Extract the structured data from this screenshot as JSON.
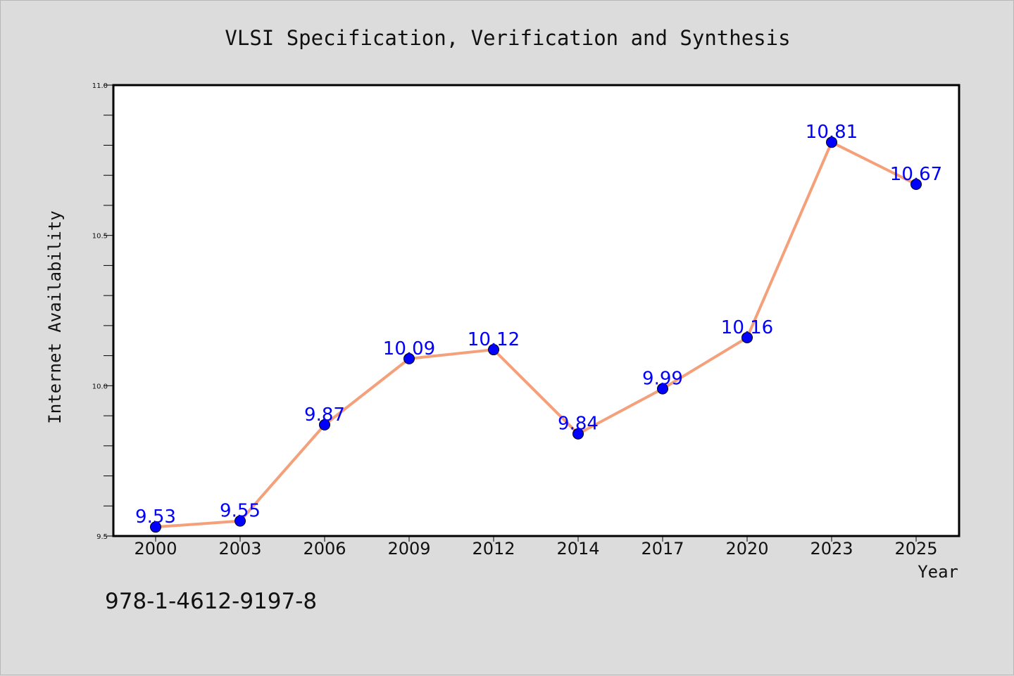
{
  "chart_data": {
    "type": "line",
    "title": "VLSI Specification, Verification and Synthesis",
    "xlabel": "Year",
    "ylabel": "Internet Availability",
    "categories": [
      "2000",
      "2003",
      "2006",
      "2009",
      "2012",
      "2014",
      "2017",
      "2020",
      "2023",
      "2025"
    ],
    "series": [
      {
        "values": [
          9.53,
          9.55,
          9.87,
          10.09,
          10.12,
          9.84,
          9.99,
          10.16,
          10.81,
          10.67
        ],
        "line_color": "#f4a07a",
        "marker_color": "#0000ff"
      }
    ],
    "data_labels": [
      "9.53",
      "9.55",
      "9.87",
      "10.09",
      "10.12",
      "9.84",
      "9.99",
      "10.16",
      "10.81",
      "10.67"
    ],
    "ylim": [
      9.5,
      11.0
    ],
    "yticks": [
      "9.5",
      "10.0",
      "10.5",
      "11.0"
    ],
    "grid": false,
    "legend": "none"
  },
  "footer": {
    "isbn": "978-1-4612-9197-8"
  }
}
